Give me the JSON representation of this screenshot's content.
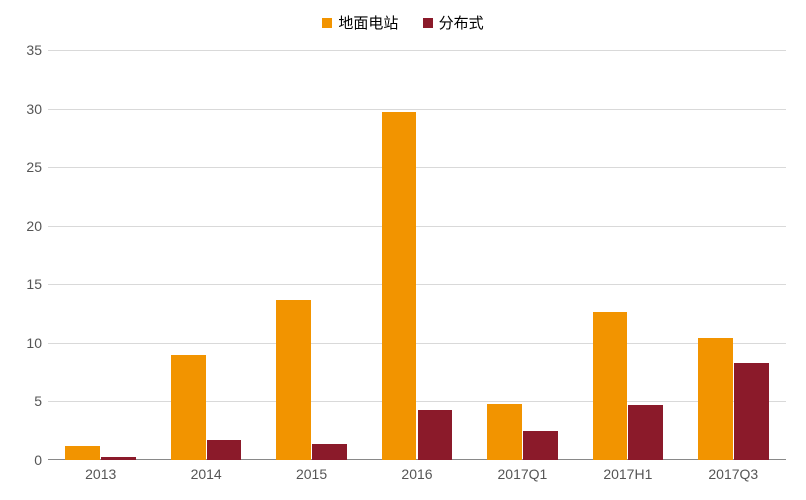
{
  "chart": {
    "type": "bar",
    "background_color": "#ffffff",
    "grid_color": "#d9d9d9",
    "axis_color": "#898989",
    "label_color": "#555555",
    "label_fontsize": 14,
    "legend_fontsize": 15,
    "ylim": [
      0,
      35
    ],
    "ytick_step": 5,
    "yticks": [
      0,
      5,
      10,
      15,
      20,
      25,
      30,
      35
    ],
    "categories": [
      "2013",
      "2014",
      "2015",
      "2016",
      "2017Q1",
      "2017H1",
      "2017Q3"
    ],
    "series": [
      {
        "name": "地面电站",
        "color": "#f29400",
        "values": [
          1.2,
          9.0,
          13.7,
          29.7,
          4.8,
          12.6,
          10.4
        ]
      },
      {
        "name": "分布式",
        "color": "#8b1a2a",
        "values": [
          0.3,
          1.7,
          1.4,
          4.3,
          2.5,
          4.7,
          8.3
        ]
      }
    ],
    "bar_width_ratio": 0.33,
    "bar_gap_ratio": 0.01
  }
}
